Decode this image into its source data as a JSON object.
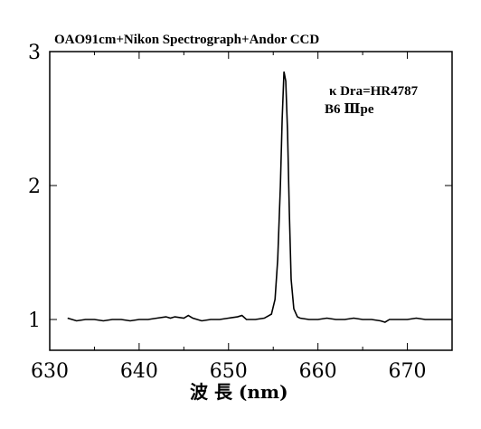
{
  "chart_data": {
    "type": "line",
    "title": "OAO91cm+Nikon Spectrograph+Andor CCD",
    "xlabel": "波 長 (nm)",
    "ylabel": "",
    "xlim": [
      630,
      675
    ],
    "ylim": [
      0.8,
      3.0
    ],
    "xticks": [
      630,
      640,
      650,
      660,
      670
    ],
    "yticks": [
      1,
      2,
      3
    ],
    "grid": false,
    "annotations": [
      "κ Dra=HR4787",
      "B6 Ⅲpe"
    ],
    "series": [
      {
        "x": [
          632.0,
          633.0,
          634.0,
          635.0,
          636.0,
          637.0,
          638.0,
          639.0,
          640.0,
          641.0,
          642.0,
          643.0,
          643.5,
          644.0,
          645.0,
          645.5,
          646.0,
          647.0,
          648.0,
          649.0,
          650.0,
          651.0,
          651.5,
          652.0,
          653.0,
          654.0,
          654.8,
          655.2,
          655.5,
          655.8,
          656.0,
          656.2,
          656.4,
          656.6,
          656.8,
          657.0,
          657.3,
          657.7,
          658.0,
          659.0,
          660.0,
          661.0,
          662.0,
          663.0,
          664.0,
          665.0,
          666.0,
          667.0,
          667.5,
          668.0,
          669.0,
          670.0,
          671.0,
          672.0,
          673.0,
          674.0,
          675.0
        ],
        "y": [
          1.01,
          0.99,
          1.0,
          1.0,
          0.99,
          1.0,
          1.0,
          0.99,
          1.0,
          1.0,
          1.01,
          1.02,
          1.01,
          1.02,
          1.01,
          1.03,
          1.01,
          0.99,
          1.0,
          1.0,
          1.01,
          1.02,
          1.03,
          1.0,
          1.0,
          1.01,
          1.04,
          1.15,
          1.45,
          2.0,
          2.5,
          2.85,
          2.78,
          2.4,
          1.8,
          1.3,
          1.08,
          1.02,
          1.01,
          1.0,
          1.0,
          1.01,
          1.0,
          1.0,
          1.01,
          1.0,
          1.0,
          0.99,
          0.98,
          1.0,
          1.0,
          1.0,
          1.01,
          1.0,
          1.0,
          1.0,
          1.0
        ]
      }
    ]
  }
}
